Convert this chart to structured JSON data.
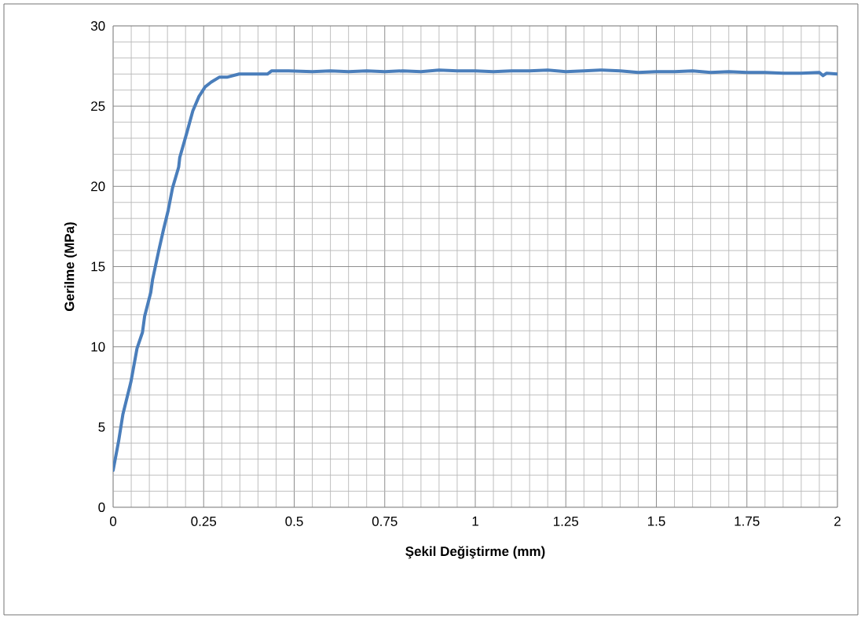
{
  "chart_data": {
    "type": "line",
    "xlabel": "Şekil Değiştirme (mm)",
    "ylabel": "Gerilme (MPa)",
    "xlim": [
      0,
      2
    ],
    "ylim": [
      0,
      30
    ],
    "xticks": [
      0,
      0.25,
      0.5,
      0.75,
      1,
      1.25,
      1.5,
      1.75,
      2
    ],
    "yticks": [
      0,
      5,
      10,
      15,
      20,
      25,
      30
    ],
    "grid": true,
    "marker": "none",
    "line_style": "solid",
    "series": [
      {
        "color": "#4a7ebb",
        "x": [
          0,
          0.015,
          0.027,
          0.049,
          0.066,
          0.081,
          0.087,
          0.104,
          0.109,
          0.126,
          0.139,
          0.152,
          0.164,
          0.181,
          0.184,
          0.203,
          0.22,
          0.237,
          0.254,
          0.271,
          0.293,
          0.314,
          0.348,
          0.391,
          0.426,
          0.438,
          0.485,
          0.55,
          0.6,
          0.65,
          0.7,
          0.75,
          0.8,
          0.85,
          0.9,
          0.95,
          1.0,
          1.05,
          1.1,
          1.15,
          1.2,
          1.25,
          1.3,
          1.35,
          1.4,
          1.45,
          1.5,
          1.55,
          1.6,
          1.65,
          1.7,
          1.75,
          1.8,
          1.85,
          1.9,
          1.95,
          1.96,
          1.97,
          2.0
        ],
        "values": [
          2.3,
          4.1,
          5.8,
          7.8,
          9.9,
          10.9,
          11.9,
          13.4,
          14.2,
          16.0,
          17.3,
          18.5,
          19.9,
          21.2,
          21.8,
          23.3,
          24.7,
          25.6,
          26.2,
          26.5,
          26.8,
          26.8,
          27.0,
          27.0,
          27.0,
          27.2,
          27.2,
          27.15,
          27.2,
          27.15,
          27.2,
          27.15,
          27.2,
          27.15,
          27.25,
          27.2,
          27.2,
          27.15,
          27.2,
          27.2,
          27.25,
          27.15,
          27.2,
          27.25,
          27.2,
          27.1,
          27.15,
          27.15,
          27.2,
          27.1,
          27.15,
          27.1,
          27.1,
          27.05,
          27.05,
          27.1,
          26.9,
          27.05,
          27.0
        ]
      }
    ]
  }
}
